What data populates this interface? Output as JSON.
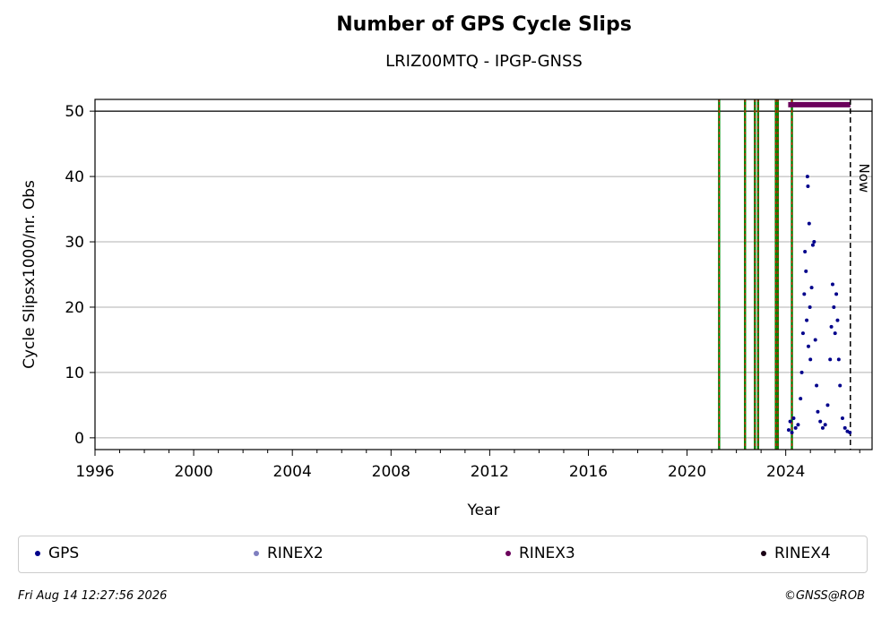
{
  "chart_data": {
    "type": "scatter",
    "title": "Number of GPS Cycle Slips",
    "subtitle": "LRIZ00MTQ - IPGP-GNSS",
    "xlabel": "Year",
    "ylabel": "Cycle Slipsx1000/nr. Obs",
    "xlim": [
      1996,
      2027.5
    ],
    "ylim": [
      -1.8,
      51.8
    ],
    "x_ticks": [
      "1996",
      "2000",
      "2004",
      "2008",
      "2012",
      "2016",
      "2020",
      "2024"
    ],
    "y_ticks": [
      "0",
      "10",
      "20",
      "30",
      "40",
      "50"
    ],
    "grid": "horizontal",
    "threshold_line": 50,
    "now_label": "Now",
    "now_year": 2026.62,
    "event_lines": [
      2021.3,
      2022.35,
      2022.75,
      2022.88,
      2023.6,
      2023.68,
      2024.25
    ],
    "rinex3_span": [
      2024.1,
      2026.62
    ],
    "rinex3_level": 51,
    "series": [
      {
        "name": "GPS",
        "color": "#00008b",
        "x": [
          2024.12,
          2024.18,
          2024.25,
          2024.32,
          2024.4,
          2024.5,
          2024.6,
          2024.65,
          2024.7,
          2024.75,
          2024.78,
          2024.82,
          2024.85,
          2024.88,
          2024.9,
          2024.92,
          2024.95,
          2024.98,
          2025.0,
          2025.05,
          2025.1,
          2025.15,
          2025.2,
          2025.25,
          2025.3,
          2025.4,
          2025.5,
          2025.6,
          2025.7,
          2025.8,
          2025.85,
          2025.9,
          2025.95,
          2026.0,
          2026.05,
          2026.1,
          2026.15,
          2026.2,
          2026.3,
          2026.4,
          2026.5,
          2026.6
        ],
        "y": [
          1.2,
          2.5,
          0.8,
          3.0,
          1.5,
          2.0,
          6.0,
          10.0,
          16.0,
          22.0,
          28.5,
          25.5,
          18.0,
          40.0,
          38.5,
          14.0,
          32.8,
          20.0,
          12.0,
          23.0,
          29.5,
          30.0,
          15.0,
          8.0,
          4.0,
          2.5,
          1.5,
          2.0,
          5.0,
          12.0,
          17.0,
          23.5,
          20.0,
          16.0,
          22.0,
          18.0,
          12.0,
          8.0,
          3.0,
          1.5,
          1.0,
          0.8
        ]
      },
      {
        "name": "RINEX2",
        "color": "#7f7fbf"
      },
      {
        "name": "RINEX3",
        "color": "#6b005b"
      },
      {
        "name": "RINEX4",
        "color": "#1a0015"
      }
    ]
  },
  "footer": {
    "timestamp": "Fri Aug 14 12:27:56 2026",
    "credit": "©GNSS@ROB"
  }
}
